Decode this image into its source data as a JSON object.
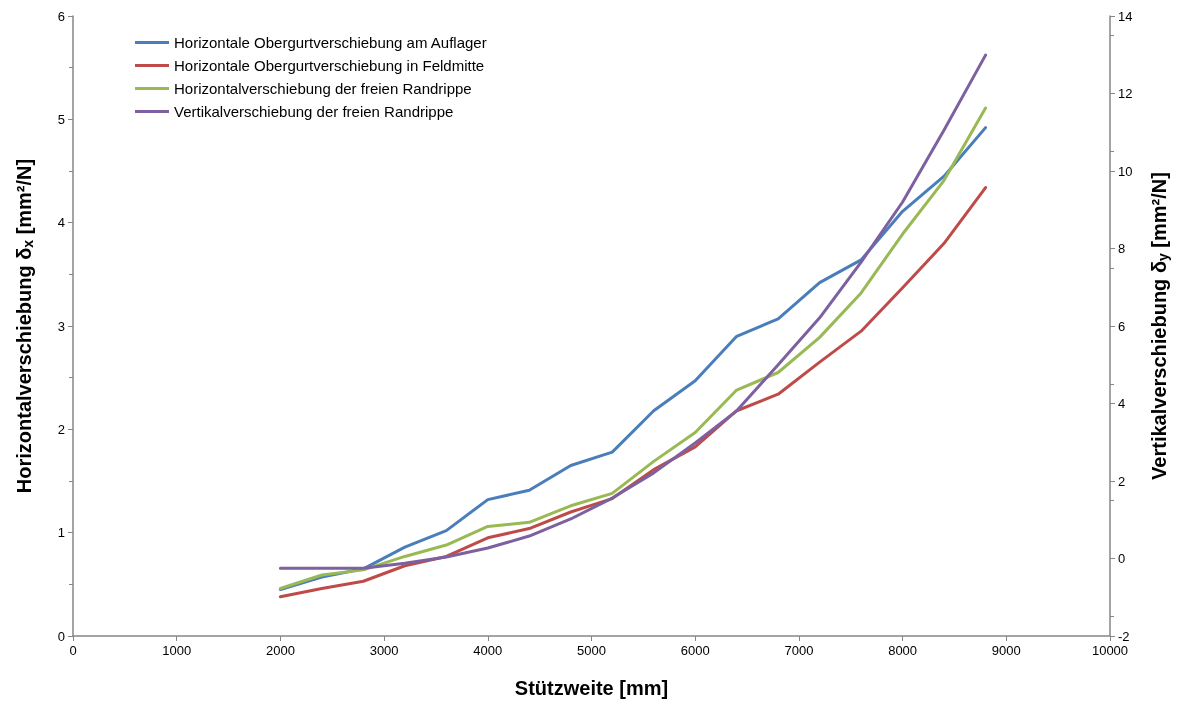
{
  "chart_data": {
    "type": "line",
    "xlabel": "Stützweite [mm]",
    "ylabel": "Horizontalverschiebung δ$_{x}$ [mm²/N]",
    "y2label": "Vertikalverschiebung δ$_{y}$ [mm²/N]",
    "x": [
      2000,
      2400,
      2800,
      3200,
      3600,
      4000,
      4400,
      4800,
      5200,
      5600,
      6000,
      6400,
      6800,
      7200,
      7600,
      8000,
      8400,
      8800
    ],
    "series": [
      {
        "name": "Horizontale Obergurtverschiebung am Auflager",
        "color": "#4a7ebb",
        "values": [
          0.45,
          0.57,
          0.65,
          0.86,
          1.02,
          1.32,
          1.41,
          1.65,
          1.78,
          2.18,
          2.47,
          2.9,
          3.07,
          3.42,
          3.64,
          4.11,
          4.45,
          4.92
        ]
      },
      {
        "name": "Horizontale Obergurtverschiebung in Feldmitte",
        "color": "#be4b48",
        "values": [
          0.38,
          0.46,
          0.53,
          0.68,
          0.77,
          0.95,
          1.04,
          1.2,
          1.33,
          1.61,
          1.83,
          2.18,
          2.34,
          2.65,
          2.95,
          3.37,
          3.8,
          4.34
        ]
      },
      {
        "name": "Horizontalverschiebung der freien Randrippe",
        "color": "#98b954",
        "values": [
          0.46,
          0.59,
          0.64,
          0.77,
          0.88,
          1.06,
          1.1,
          1.26,
          1.38,
          1.69,
          1.97,
          2.38,
          2.55,
          2.89,
          3.32,
          3.89,
          4.41,
          5.11
        ]
      },
      {
        "name": "Vertikalverschiebung der freien Randrippe",
        "color": "#7d60a0",
        "axis": "y2",
        "values": [
          -0.25,
          -0.25,
          -0.25,
          -0.12,
          0.04,
          0.27,
          0.58,
          1.02,
          1.56,
          2.21,
          2.98,
          3.81,
          5.0,
          6.21,
          7.65,
          9.2,
          11.06,
          12.99
        ]
      }
    ],
    "xlim": [
      0,
      10000
    ],
    "xticks": [
      0,
      1000,
      2000,
      3000,
      4000,
      5000,
      6000,
      7000,
      8000,
      9000,
      10000
    ],
    "ylim": [
      0,
      6
    ],
    "yticks": [
      0,
      1,
      2,
      3,
      4,
      5,
      6
    ],
    "y2lim": [
      -2,
      14
    ],
    "y2ticks": [
      -2,
      0,
      2,
      4,
      6,
      8,
      10,
      12,
      14
    ],
    "grid": false,
    "legend": "top left",
    "marker": "none",
    "line_style": "solid"
  }
}
